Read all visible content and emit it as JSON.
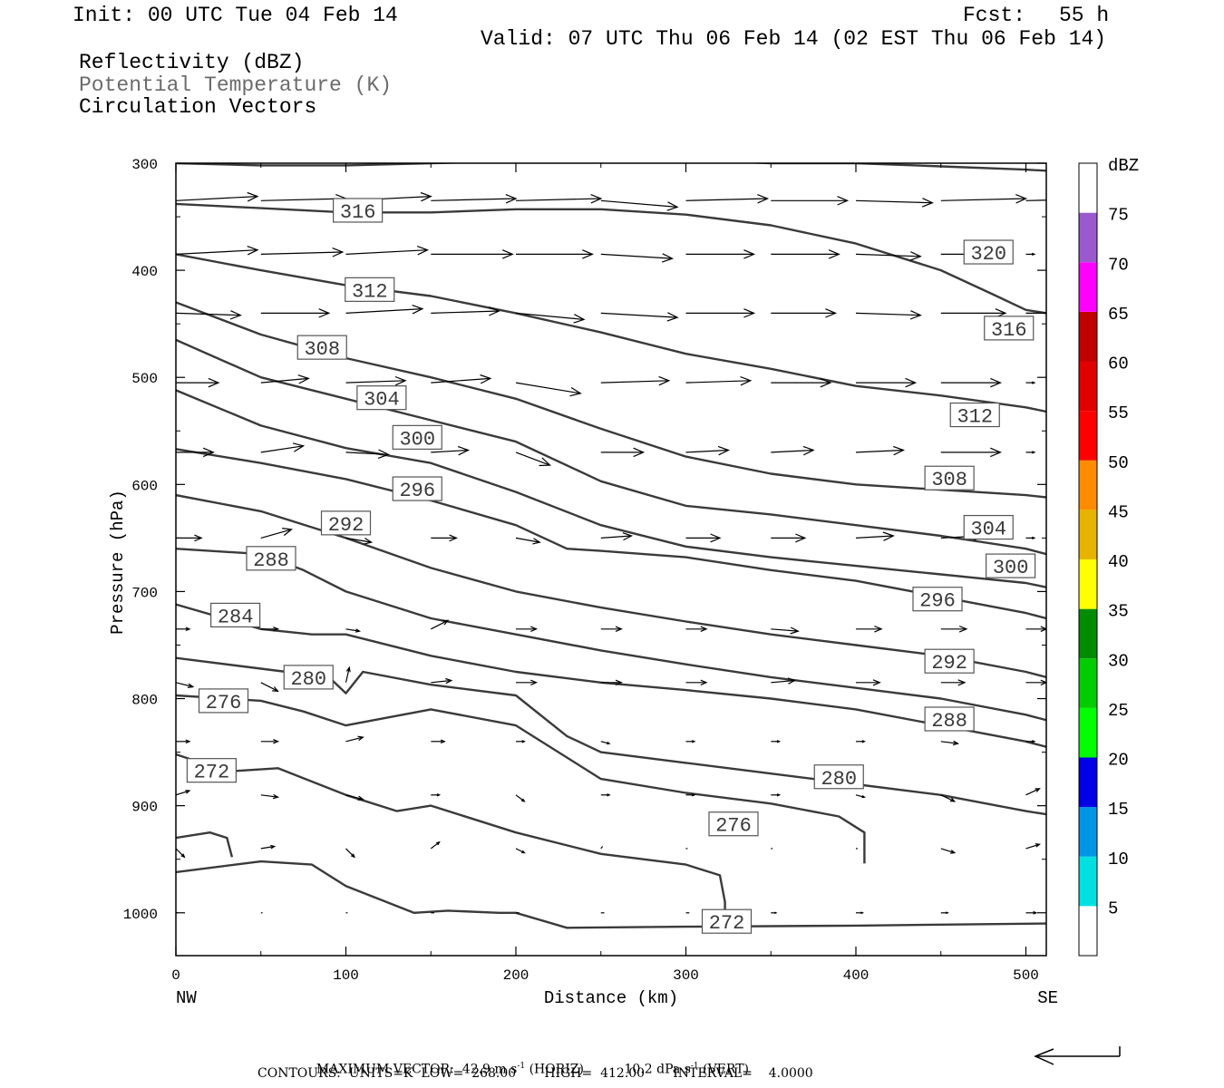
{
  "header": {
    "init": "Init: 00 UTC Tue 04 Feb 14",
    "fcst_label": "Fcst:",
    "fcst_value": "55 h",
    "valid": "Valid: 07 UTC Thu 06 Feb 14 (02 EST Thu 06 Feb 14)"
  },
  "fields": {
    "reflectivity": "Reflectivity (dBZ)",
    "theta": "Potential Temperature (K)",
    "vectors": "Circulation Vectors"
  },
  "axes": {
    "ylabel": "Pressure (hPa)",
    "xlabel": "Distance (km)",
    "left_end": "NW",
    "right_end": "SE",
    "y_ticks": [
      "300",
      "400",
      "500",
      "600",
      "700",
      "800",
      "900",
      "1000"
    ],
    "x_ticks": [
      "0",
      "100",
      "200",
      "300",
      "400",
      "500"
    ]
  },
  "colorbar": {
    "title": "dBZ",
    "levels": [
      "5",
      "10",
      "15",
      "20",
      "25",
      "30",
      "35",
      "40",
      "45",
      "50",
      "55",
      "60",
      "65",
      "70",
      "75"
    ],
    "colors": [
      "#00e0e0",
      "#0096e6",
      "#0000e6",
      "#00ff00",
      "#00cc00",
      "#008c00",
      "#ffff00",
      "#e6b400",
      "#ff8c00",
      "#ff0000",
      "#e00000",
      "#c00000",
      "#ff00ff",
      "#9a5acd",
      "#ffffff"
    ]
  },
  "footer": {
    "max_vector_label": "MAXIMUM VECTOR:",
    "max_vector_horiz": "42.9 m s",
    "horiz_tag": "(HORIZ)",
    "max_vector_vert": "10.2 dPa s",
    "vert_tag": "(VERT)",
    "exponent": "-1",
    "contours": "CONTOURS:  UNITS=K  LOW=  268.00       HIGH=  412.00       INTERVAL=    4.0000"
  },
  "chart_data": {
    "type": "line",
    "title": "",
    "xlabel": "Distance (km)",
    "ylabel": "Pressure (hPa)",
    "xlim": [
      0,
      512
    ],
    "ylim": [
      1040,
      300
    ],
    "contour_interval_K": 4,
    "series": [
      {
        "name": "320",
        "x": [
          0,
          50,
          100,
          150,
          200,
          250,
          300,
          350,
          400,
          450,
          500,
          512
        ],
        "y": [
          300,
          302,
          302,
          300,
          298,
          296,
          297,
          300,
          300,
          303,
          306,
          307
        ]
      },
      {
        "name": "316",
        "x": [
          0,
          50,
          100,
          150,
          200,
          250,
          300,
          350,
          400,
          450,
          480,
          500,
          512
        ],
        "y": [
          338,
          342,
          346,
          346,
          343,
          343,
          348,
          358,
          375,
          400,
          422,
          437,
          440
        ]
      },
      {
        "name": "312",
        "x": [
          0,
          50,
          100,
          150,
          200,
          250,
          300,
          350,
          400,
          450,
          500,
          512
        ],
        "y": [
          385,
          400,
          414,
          424,
          440,
          458,
          478,
          492,
          508,
          517,
          528,
          532
        ]
      },
      {
        "name": "308",
        "x": [
          0,
          50,
          100,
          150,
          200,
          250,
          300,
          350,
          400,
          450,
          500,
          512
        ],
        "y": [
          430,
          460,
          482,
          500,
          520,
          548,
          574,
          590,
          600,
          605,
          610,
          612
        ]
      },
      {
        "name": "304",
        "x": [
          0,
          50,
          100,
          150,
          200,
          250,
          300,
          350,
          400,
          450,
          500,
          512
        ],
        "y": [
          465,
          500,
          520,
          540,
          560,
          597,
          620,
          628,
          638,
          648,
          660,
          665
        ]
      },
      {
        "name": "300",
        "x": [
          0,
          50,
          100,
          150,
          200,
          250,
          300,
          350,
          400,
          450,
          500,
          512
        ],
        "y": [
          512,
          545,
          566,
          580,
          607,
          638,
          658,
          668,
          676,
          684,
          692,
          696
        ]
      },
      {
        "name": "296",
        "x": [
          0,
          50,
          100,
          150,
          200,
          230,
          250,
          300,
          350,
          400,
          450,
          500,
          512
        ],
        "y": [
          567,
          580,
          595,
          615,
          638,
          660,
          662,
          668,
          680,
          690,
          705,
          720,
          725
        ]
      },
      {
        "name": "292",
        "x": [
          0,
          50,
          100,
          150,
          200,
          250,
          300,
          350,
          400,
          450,
          500,
          512
        ],
        "y": [
          610,
          625,
          650,
          678,
          700,
          715,
          728,
          740,
          750,
          760,
          775,
          780
        ]
      },
      {
        "name": "288",
        "x": [
          0,
          50,
          75,
          100,
          150,
          200,
          250,
          300,
          350,
          400,
          450,
          500,
          512
        ],
        "y": [
          660,
          665,
          680,
          700,
          725,
          740,
          755,
          768,
          780,
          790,
          800,
          815,
          820
        ]
      },
      {
        "name": "284",
        "x": [
          0,
          50,
          80,
          100,
          150,
          200,
          250,
          300,
          350,
          400,
          450,
          500,
          512
        ],
        "y": [
          712,
          735,
          740,
          740,
          760,
          775,
          785,
          792,
          800,
          810,
          825,
          840,
          845
        ]
      },
      {
        "name": "280",
        "x": [
          0,
          50,
          90,
          100,
          110,
          150,
          200,
          230,
          250,
          300,
          350,
          400,
          450,
          500,
          512
        ],
        "y": [
          762,
          772,
          780,
          795,
          775,
          787,
          797,
          835,
          850,
          860,
          870,
          880,
          890,
          905,
          908
        ]
      },
      {
        "name": "276",
        "x": [
          0,
          50,
          75,
          100,
          150,
          200,
          250,
          300,
          350,
          390,
          405,
          405
        ],
        "y": [
          797,
          802,
          812,
          825,
          810,
          825,
          875,
          888,
          898,
          910,
          925,
          954
        ]
      },
      {
        "name": "272",
        "x": [
          0,
          30,
          60,
          100,
          130,
          150,
          200,
          250,
          300,
          320,
          323,
          323
        ],
        "y": [
          852,
          868,
          865,
          890,
          905,
          900,
          925,
          945,
          955,
          965,
          990,
          1010
        ]
      },
      {
        "name": "268",
        "x": [
          0,
          20,
          30,
          33
        ],
        "y": [
          930,
          925,
          930,
          948
        ]
      },
      {
        "name": "272",
        "x": [
          0,
          50,
          80,
          100,
          140,
          160,
          190,
          200,
          230,
          300,
          400,
          512
        ],
        "y": [
          962,
          952,
          955,
          975,
          1000,
          998,
          1000,
          1000,
          1014,
          1013,
          1012,
          1010
        ]
      }
    ],
    "contour_labels": [
      {
        "text": "316",
        "x": 107,
        "y": 344
      },
      {
        "text": "320",
        "x": 478,
        "y": 383
      },
      {
        "text": "312",
        "x": 114,
        "y": 418
      },
      {
        "text": "316",
        "x": 490,
        "y": 454
      },
      {
        "text": "308",
        "x": 86,
        "y": 472
      },
      {
        "text": "304",
        "x": 121,
        "y": 519
      },
      {
        "text": "312",
        "x": 470,
        "y": 535
      },
      {
        "text": "300",
        "x": 142,
        "y": 556
      },
      {
        "text": "308",
        "x": 455,
        "y": 594
      },
      {
        "text": "296",
        "x": 142,
        "y": 604
      },
      {
        "text": "292",
        "x": 100,
        "y": 636
      },
      {
        "text": "304",
        "x": 478,
        "y": 640
      },
      {
        "text": "288",
        "x": 56,
        "y": 669
      },
      {
        "text": "300",
        "x": 491,
        "y": 676
      },
      {
        "text": "296",
        "x": 448,
        "y": 707
      },
      {
        "text": "284",
        "x": 35,
        "y": 722
      },
      {
        "text": "292",
        "x": 455,
        "y": 765
      },
      {
        "text": "280",
        "x": 78,
        "y": 780
      },
      {
        "text": "276",
        "x": 28,
        "y": 802
      },
      {
        "text": "288",
        "x": 455,
        "y": 819
      },
      {
        "text": "272",
        "x": 21,
        "y": 867
      },
      {
        "text": "280",
        "x": 390,
        "y": 873
      },
      {
        "text": "276",
        "x": 328,
        "y": 917
      },
      {
        "text": "272",
        "x": 324,
        "y": 1008
      }
    ],
    "vector_rows": [
      {
        "p": 335,
        "x0": [
          0,
          50,
          100,
          150,
          200,
          250,
          300,
          350,
          400,
          450,
          500
        ],
        "dx": [
          48,
          50,
          50,
          50,
          50,
          45,
          48,
          45,
          45,
          50,
          50
        ],
        "dp": [
          -4,
          -2,
          -4,
          -2,
          -2,
          6,
          -2,
          0,
          2,
          -2,
          -2
        ]
      },
      {
        "p": 385,
        "x0": [
          0,
          50,
          100,
          150,
          200,
          250,
          300,
          350,
          400,
          450,
          500
        ],
        "dx": [
          48,
          48,
          48,
          48,
          45,
          42,
          40,
          40,
          38,
          40,
          5
        ],
        "dp": [
          -4,
          -2,
          -4,
          0,
          0,
          4,
          0,
          0,
          2,
          0,
          0
        ]
      },
      {
        "p": 440,
        "x0": [
          0,
          50,
          100,
          150,
          200,
          250,
          300,
          350,
          400,
          450,
          500
        ],
        "dx": [
          38,
          40,
          45,
          40,
          40,
          45,
          40,
          38,
          38,
          38,
          38
        ],
        "dp": [
          2,
          0,
          -4,
          -2,
          6,
          4,
          0,
          0,
          2,
          0,
          0
        ]
      },
      {
        "p": 505,
        "x0": [
          0,
          50,
          100,
          150,
          200,
          250,
          300,
          350,
          400,
          450,
          500
        ],
        "dx": [
          25,
          28,
          35,
          35,
          38,
          40,
          38,
          35,
          35,
          35,
          5
        ],
        "dp": [
          0,
          -4,
          -2,
          -4,
          10,
          -2,
          -2,
          0,
          0,
          0,
          0
        ]
      },
      {
        "p": 570,
        "x0": [
          0,
          50,
          100,
          150,
          200,
          250,
          300,
          350,
          400,
          450,
          500
        ],
        "dx": [
          22,
          25,
          25,
          22,
          20,
          25,
          25,
          25,
          28,
          35,
          5
        ],
        "dp": [
          0,
          -6,
          2,
          -2,
          12,
          0,
          -2,
          -2,
          -2,
          0,
          0
        ]
      },
      {
        "p": 650,
        "x0": [
          0,
          50,
          100,
          150,
          200,
          250,
          300,
          350,
          400,
          450,
          500
        ],
        "dx": [
          15,
          18,
          15,
          15,
          14,
          18,
          20,
          20,
          22,
          25,
          5
        ],
        "dp": [
          0,
          -8,
          4,
          0,
          4,
          -2,
          0,
          0,
          -2,
          -2,
          0
        ]
      },
      {
        "p": 735,
        "x0": [
          0,
          50,
          100,
          150,
          200,
          250,
          300,
          350,
          400,
          450,
          500
        ],
        "dx": [
          8,
          10,
          8,
          10,
          12,
          12,
          12,
          16,
          15,
          15,
          12
        ],
        "dp": [
          0,
          0,
          2,
          -8,
          0,
          0,
          0,
          2,
          0,
          0,
          0
        ]
      },
      {
        "p": 785,
        "x0": [
          0,
          50,
          100,
          150,
          200,
          250,
          300,
          350,
          400,
          450,
          500
        ],
        "dx": [
          10,
          10,
          2,
          12,
          12,
          12,
          12,
          14,
          14,
          14,
          12
        ],
        "dp": [
          4,
          8,
          -14,
          -2,
          0,
          0,
          0,
          -2,
          0,
          0,
          0
        ]
      },
      {
        "p": 840,
        "x0": [
          0,
          50,
          100,
          150,
          200,
          250,
          300,
          350,
          400,
          450,
          500
        ],
        "dx": [
          8,
          10,
          10,
          8,
          5,
          5,
          5,
          5,
          5,
          10,
          5
        ],
        "dp": [
          0,
          0,
          -4,
          0,
          0,
          2,
          0,
          0,
          0,
          2,
          0
        ]
      },
      {
        "p": 890,
        "x0": [
          0,
          50,
          100,
          150,
          200,
          250,
          300,
          350,
          400,
          450,
          500
        ],
        "dx": [
          8,
          10,
          10,
          5,
          5,
          5,
          5,
          5,
          5,
          8,
          8
        ],
        "dp": [
          -4,
          2,
          4,
          0,
          6,
          0,
          0,
          0,
          2,
          6,
          -6
        ]
      },
      {
        "p": 940,
        "x0": [
          0,
          50,
          100,
          150,
          200,
          250,
          300,
          350,
          400,
          450,
          500
        ],
        "dx": [
          5,
          8,
          5,
          5,
          5,
          1,
          1,
          1,
          1,
          8,
          8
        ],
        "dp": [
          8,
          -2,
          8,
          -6,
          4,
          -2,
          0,
          0,
          0,
          4,
          -4
        ]
      },
      {
        "p": 1000,
        "x0": [
          0,
          50,
          100,
          150,
          200,
          250,
          300,
          350,
          400,
          450,
          500
        ],
        "dx": [
          1,
          1,
          1,
          2,
          2,
          2,
          2,
          3,
          4,
          4,
          6
        ],
        "dp": [
          0,
          0,
          0,
          0,
          0,
          0,
          0,
          0,
          0,
          0,
          0
        ]
      }
    ]
  }
}
